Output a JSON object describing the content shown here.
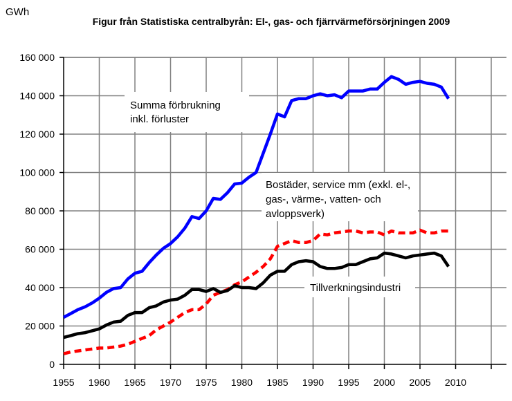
{
  "chart_data": {
    "type": "line",
    "title": "Figur från Statistiska centralbyrån: El-, gas- och fjärrvärmeförsörjningen 2009",
    "ylabel": "GWh",
    "xlabel": "",
    "xlim": [
      1955,
      2015
    ],
    "ylim": [
      0,
      160000
    ],
    "x_ticks": [
      "1955",
      "1960",
      "1965",
      "1970",
      "1975",
      "1980",
      "1985",
      "1990",
      "1995",
      "2000",
      "2005",
      "2010"
    ],
    "y_ticks": [
      "0",
      "20 000",
      "40 000",
      "60 000",
      "80 000",
      "100 000",
      "120 000",
      "140 000",
      "160 000"
    ],
    "grid": true,
    "x": [
      1955,
      1956,
      1957,
      1958,
      1959,
      1960,
      1961,
      1962,
      1963,
      1964,
      1965,
      1966,
      1967,
      1968,
      1969,
      1970,
      1971,
      1972,
      1973,
      1974,
      1975,
      1976,
      1977,
      1978,
      1979,
      1980,
      1981,
      1982,
      1983,
      1984,
      1985,
      1986,
      1987,
      1988,
      1989,
      1990,
      1991,
      1992,
      1993,
      1994,
      1995,
      1996,
      1997,
      1998,
      1999,
      2000,
      2001,
      2002,
      2003,
      2004,
      2005,
      2006,
      2007,
      2008,
      2009
    ],
    "series": [
      {
        "name": "Summa förbrukning inkl. förluster",
        "color": "#0000ff",
        "style": "solid",
        "values": [
          24500,
          26500,
          28500,
          30000,
          32000,
          34500,
          37500,
          39500,
          40000,
          44500,
          47500,
          48500,
          53000,
          57000,
          60500,
          63000,
          66500,
          71000,
          77000,
          76000,
          80000,
          86500,
          86000,
          89500,
          94000,
          94500,
          97500,
          100000,
          110000,
          120000,
          130500,
          129000,
          137500,
          138500,
          138500,
          140000,
          141000,
          140000,
          140500,
          139000,
          142500,
          142500,
          142500,
          143500,
          143500,
          147000,
          150000,
          148500,
          146000,
          147000,
          147500,
          146500,
          146000,
          144500,
          138500
        ]
      },
      {
        "name": "Bostäder, service mm (exkl. el-, gas-, värme-, vatten- och avloppsverk)",
        "color": "#ff0000",
        "style": "dashed",
        "values": [
          5500,
          6500,
          7000,
          7500,
          8000,
          8500,
          8500,
          9000,
          9500,
          10500,
          12000,
          13500,
          15000,
          18000,
          20000,
          22000,
          24500,
          27000,
          28500,
          28500,
          31500,
          36000,
          37500,
          39000,
          41500,
          43000,
          45500,
          48000,
          51000,
          55000,
          61500,
          63000,
          64500,
          63500,
          63500,
          64500,
          68000,
          67500,
          68500,
          69000,
          69500,
          69500,
          68500,
          69000,
          69000,
          67500,
          69500,
          68500,
          68500,
          68500,
          70000,
          68500,
          68500,
          69500,
          69500
        ]
      },
      {
        "name": "Tillverkningsindustri",
        "color": "#000000",
        "style": "solid",
        "values": [
          14000,
          15000,
          16000,
          16500,
          17500,
          18500,
          20500,
          22000,
          22500,
          25500,
          27000,
          27000,
          29500,
          30500,
          32500,
          33500,
          34000,
          36000,
          39000,
          39000,
          38000,
          39500,
          37500,
          38500,
          41000,
          40000,
          40000,
          39500,
          42500,
          46500,
          48500,
          48500,
          52000,
          53500,
          54000,
          53500,
          51000,
          50000,
          50000,
          50500,
          52000,
          52000,
          53500,
          55000,
          55500,
          58000,
          57500,
          56500,
          55500,
          56500,
          57000,
          57500,
          58000,
          56500,
          51000
        ]
      }
    ],
    "annotations": {
      "summa_line1": "Summa förbrukning",
      "summa_line2": "inkl. förluster",
      "bostader_line1": "Bostäder, service mm (exkl. el-,",
      "bostader_line2": "gas-, värme-, vatten- och",
      "bostader_line3": "avloppsverk)",
      "industri": "Tillverkningsindustri"
    }
  }
}
